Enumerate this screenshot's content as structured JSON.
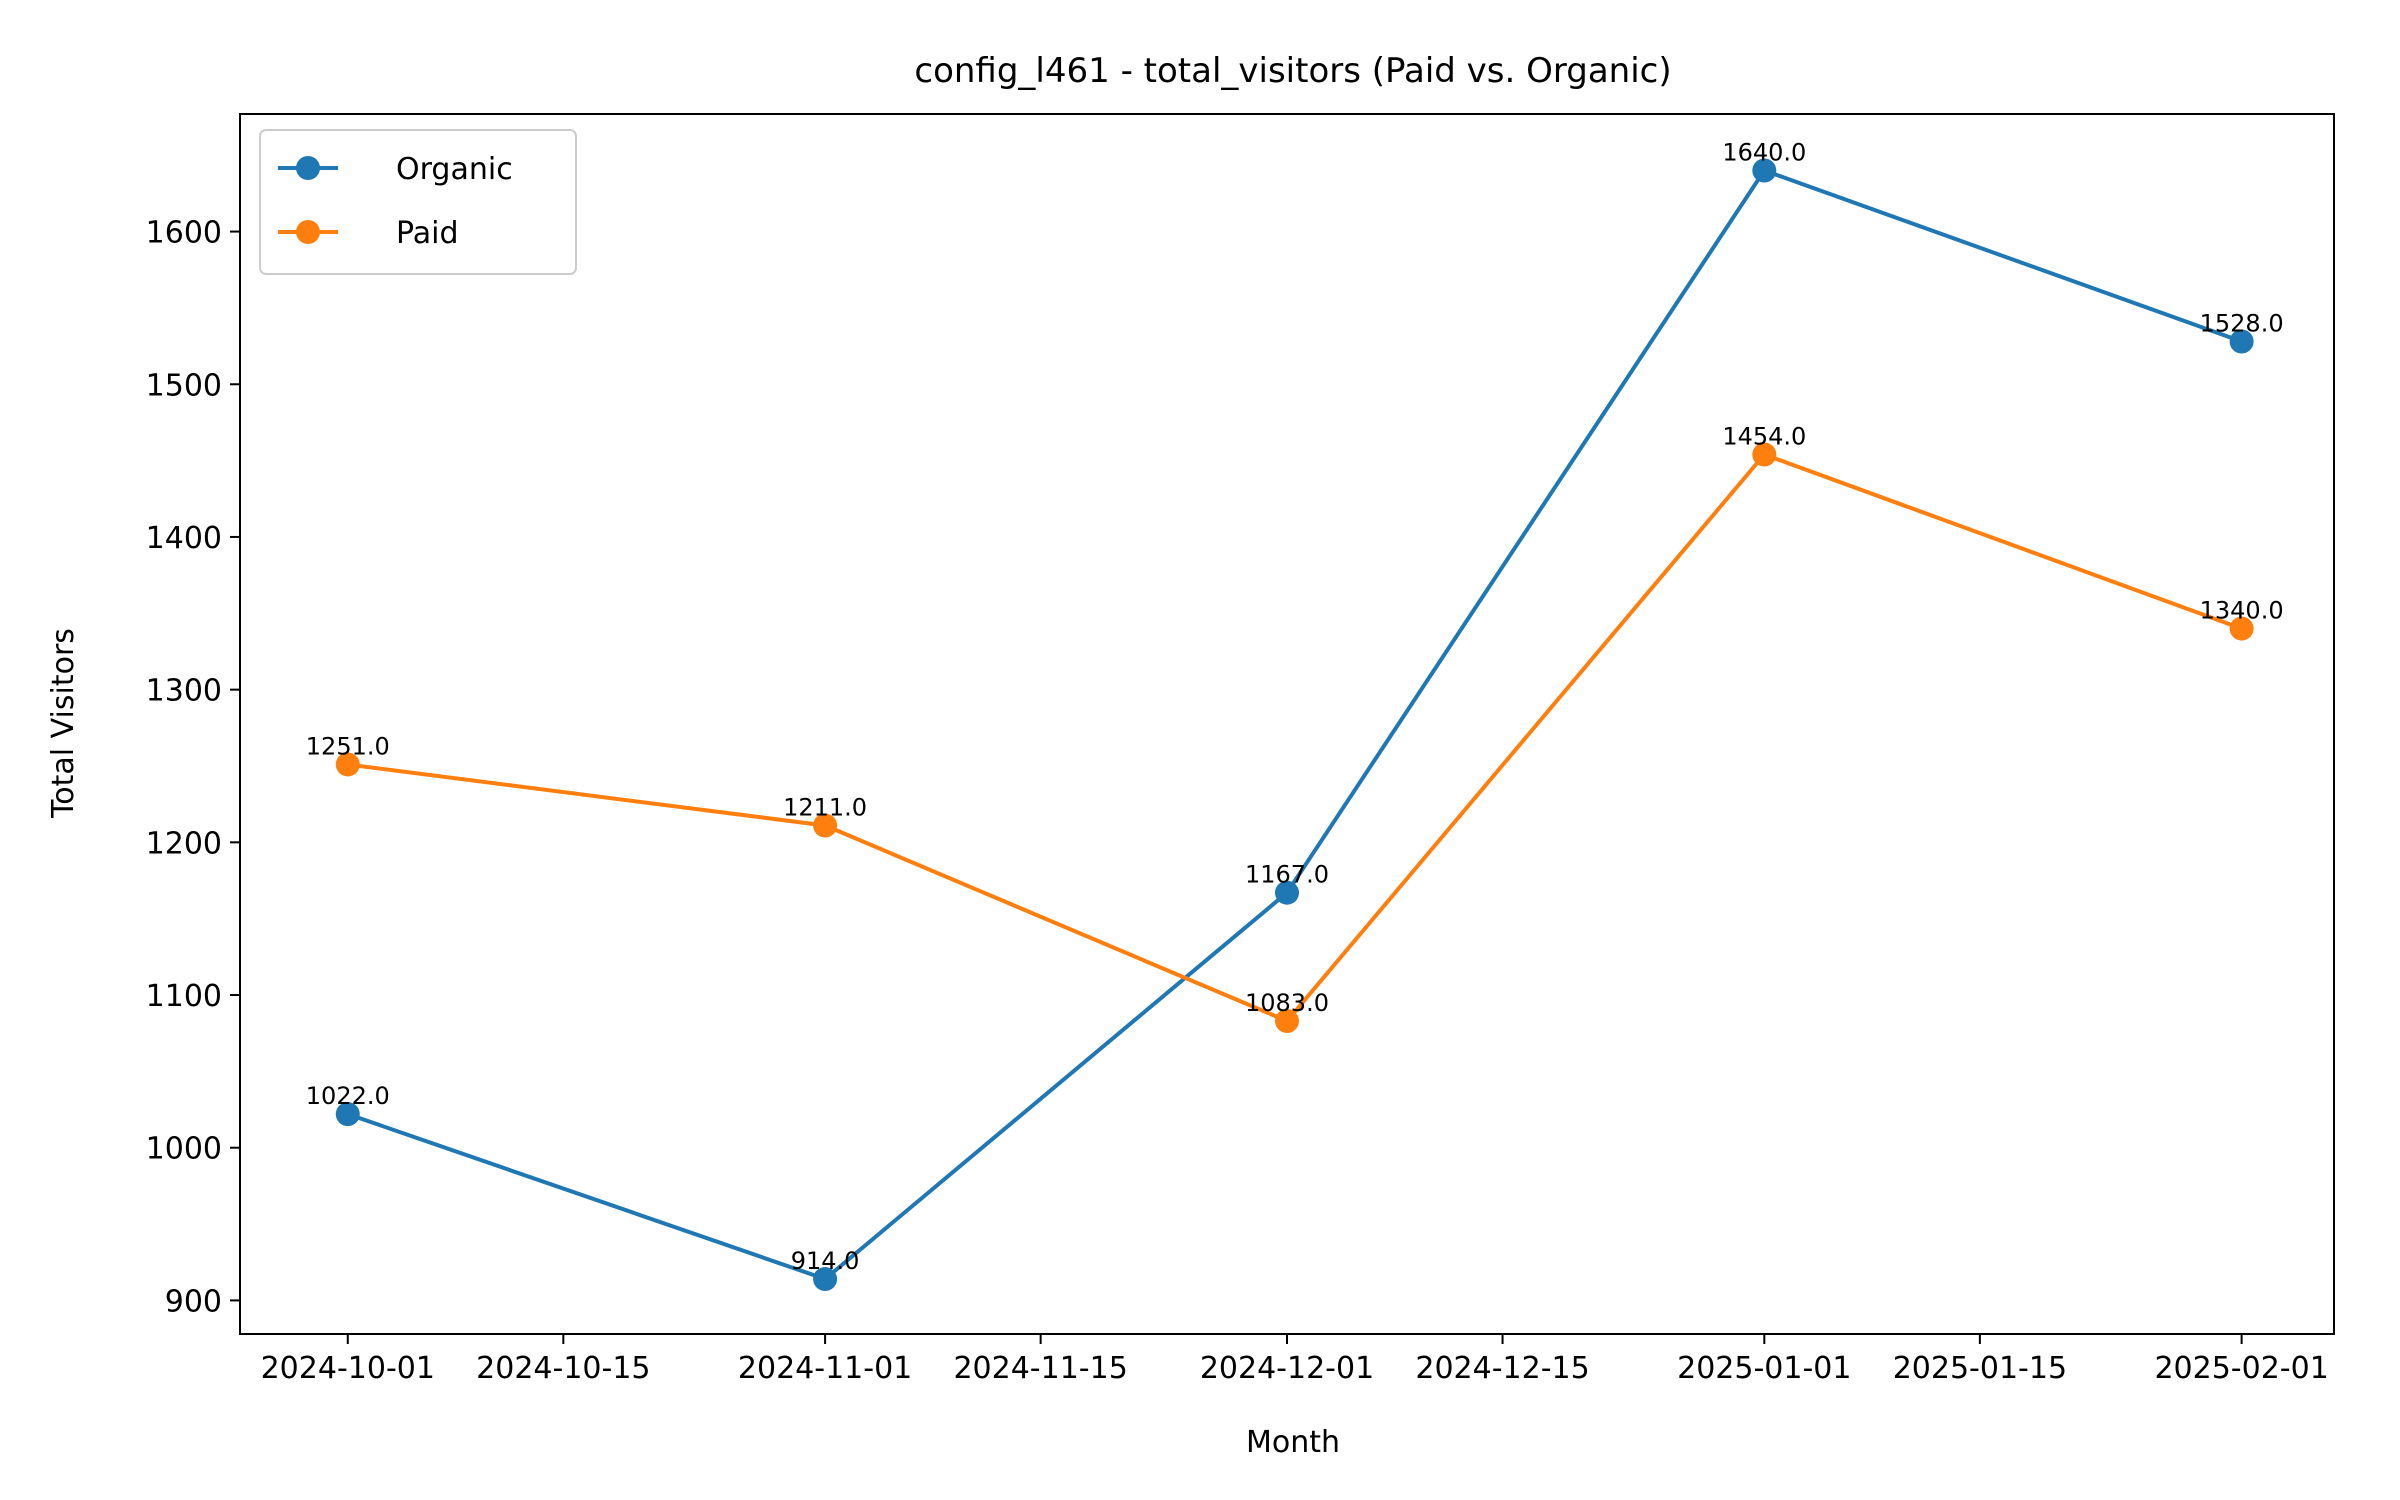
{
  "chart_data": {
    "type": "line",
    "title": "config_l461 - total_visitors (Paid vs. Organic)",
    "xlabel": "Month",
    "ylabel": "Total Visitors",
    "x": [
      "2024-10-01",
      "2024-11-01",
      "2024-12-01",
      "2025-01-01",
      "2025-02-01"
    ],
    "x_ticks": [
      "2024-10-01",
      "2024-10-15",
      "2024-11-01",
      "2024-11-15",
      "2024-12-01",
      "2024-12-15",
      "2025-01-01",
      "2025-01-15",
      "2025-02-01"
    ],
    "y_ticks": [
      900,
      1000,
      1100,
      1200,
      1300,
      1400,
      1500,
      1600
    ],
    "ylim": [
      878,
      1677
    ],
    "xlim": [
      "2024-09-24",
      "2025-02-07"
    ],
    "grid": false,
    "legend_placement": "top-left",
    "series": [
      {
        "name": "Organic",
        "color": "#1f77b4",
        "values": [
          1022.0,
          914.0,
          1167.0,
          1640.0,
          1528.0
        ],
        "labels": [
          "1022.0",
          "914.0",
          "1167.0",
          "1640.0",
          "1528.0"
        ]
      },
      {
        "name": "Paid",
        "color": "#ff7f0e",
        "values": [
          1251.0,
          1211.0,
          1083.0,
          1454.0,
          1340.0
        ],
        "labels": [
          "1251.0",
          "1211.0",
          "1083.0",
          "1454.0",
          "1340.0"
        ]
      }
    ]
  }
}
